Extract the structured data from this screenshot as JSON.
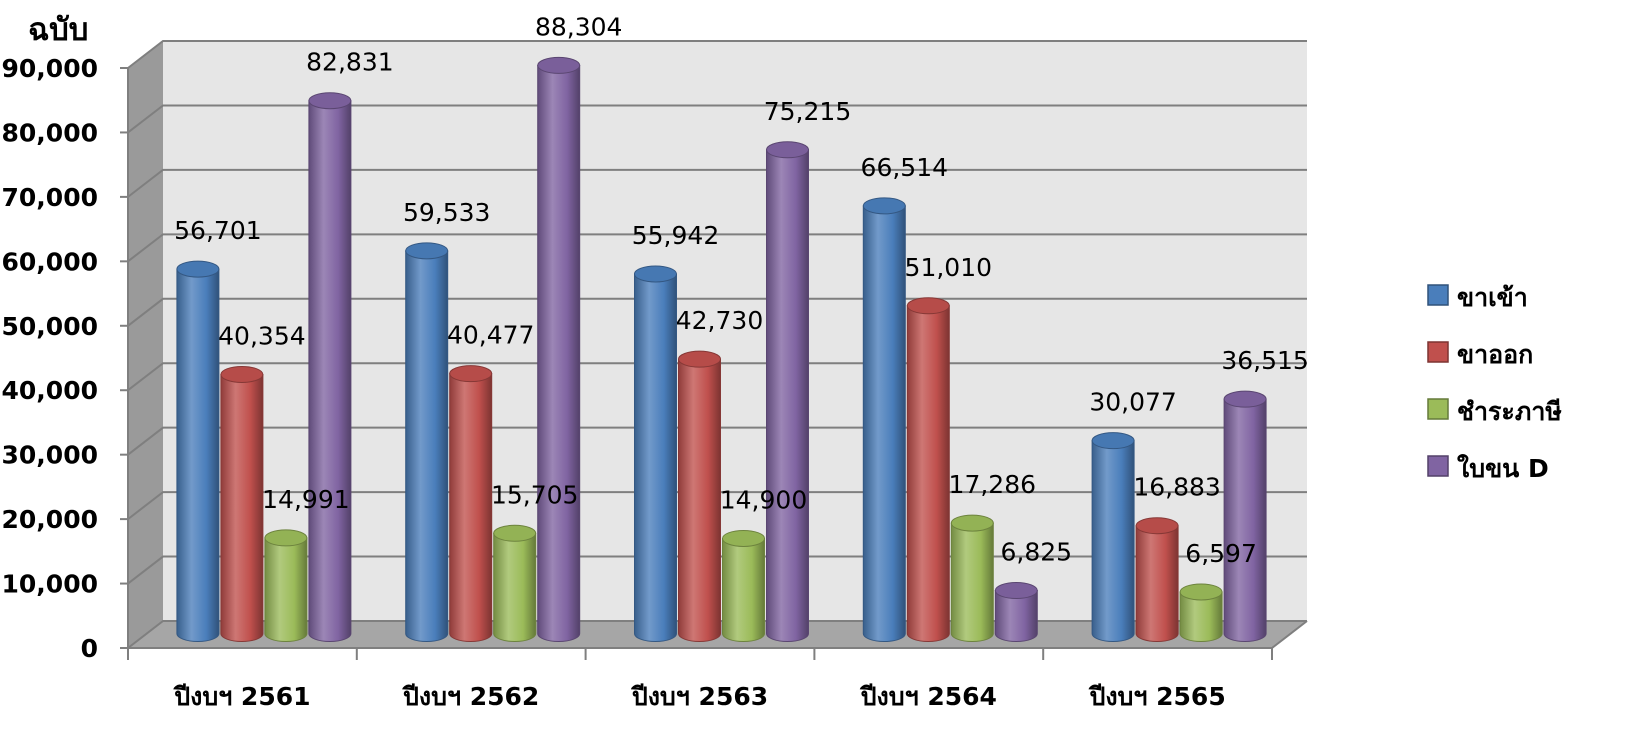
{
  "chart_data": {
    "type": "bar",
    "style": "3d-cylinder",
    "unit_label": "ฉบับ",
    "categories": [
      "ปีงบฯ 2561",
      "ปีงบฯ 2562",
      "ปีงบฯ 2563",
      "ปีงบฯ 2564",
      "ปีงบฯ 2565"
    ],
    "series": [
      {
        "name": "ขาเข้า",
        "color": "#4a7ebb",
        "values": [
          56701,
          59533,
          55942,
          66514,
          30077
        ]
      },
      {
        "name": "ขาออก",
        "color": "#c0504d",
        "values": [
          40354,
          40477,
          42730,
          51010,
          16883
        ]
      },
      {
        "name": "ชำระภาษี",
        "color": "#9bbb59",
        "values": [
          14991,
          15705,
          14900,
          17286,
          6597
        ]
      },
      {
        "name": "ใบขน D",
        "color": "#8064a2",
        "values": [
          82831,
          88304,
          75215,
          6825,
          36515
        ]
      }
    ],
    "value_labels": [
      [
        "56,701",
        "59,533",
        "55,942",
        "66,514",
        "30,077"
      ],
      [
        "40,354",
        "40,477",
        "42,730",
        "51,010",
        "16,883"
      ],
      [
        "14,991",
        "15,705",
        "14,900",
        "17,286",
        "6,597"
      ],
      [
        "82,831",
        "88,304",
        "75,215",
        "6,825",
        "36,515"
      ]
    ],
    "yticks": [
      "0",
      "10,000",
      "20,000",
      "30,000",
      "40,000",
      "50,000",
      "60,000",
      "70,000",
      "80,000",
      "90,000"
    ],
    "ylim": [
      0,
      90000
    ],
    "grid": true,
    "legend_position": "right"
  }
}
